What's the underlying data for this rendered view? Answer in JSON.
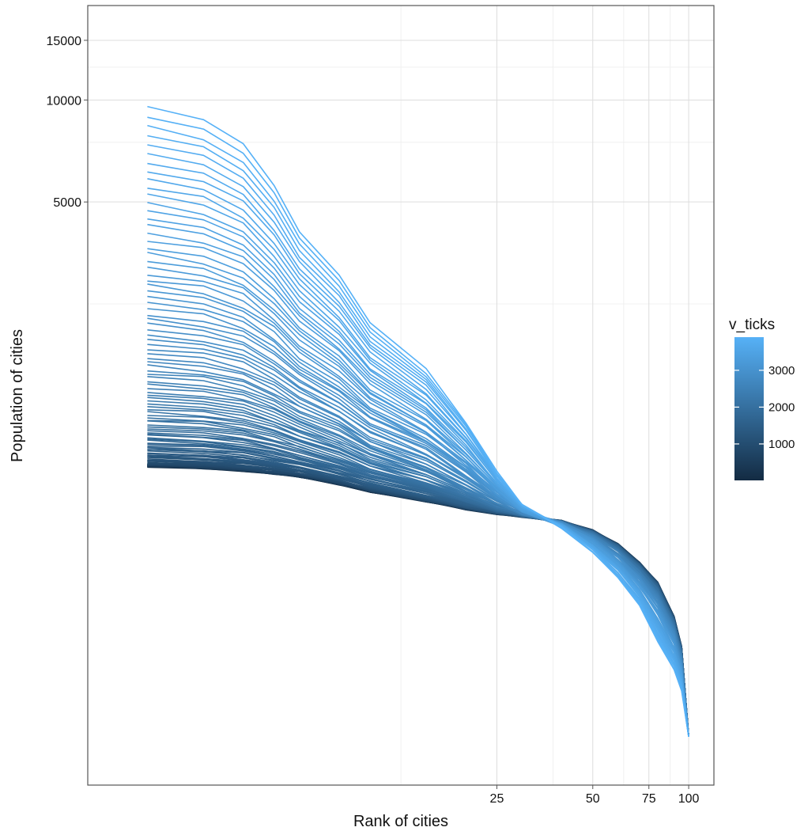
{
  "chart_data": {
    "type": "line",
    "title": "",
    "xlabel": "Rank of cities",
    "ylabel": "Population of cities",
    "x_scale": "log10",
    "y_scale": "log10",
    "xlim": [
      1.3,
      120
    ],
    "ylim": [
      95,
      19000
    ],
    "x_ticks": [
      25,
      50,
      75,
      100
    ],
    "y_ticks": [
      5000,
      10000,
      15000
    ],
    "grid": true,
    "x_minor_grid": [
      12.5,
      37.5,
      62.5,
      87.5
    ],
    "y_minor_grid": [
      2500,
      7500,
      12500
    ],
    "series_count": 120,
    "color_variable": "v_ticks",
    "color_range": [
      10,
      3900
    ],
    "color_low": "#132b43",
    "color_high": "#56b1f7",
    "ranks": [
      2,
      3,
      4,
      5,
      6,
      8,
      10,
      15,
      20,
      25,
      30,
      40,
      50,
      60,
      70,
      80,
      90,
      95,
      100
    ],
    "top_line_populations": [
      9500,
      8700,
      7400,
      5600,
      4100,
      3050,
      2200,
      1600,
      1120,
      800,
      640,
      545,
      462,
      388,
      322,
      252,
      208,
      181,
      132
    ],
    "bottom_line_populations": [
      830,
      820,
      806,
      790,
      775,
      735,
      700,
      655,
      621,
      601,
      590,
      570,
      535,
      487,
      430,
      375,
      297,
      242,
      132
    ]
  },
  "legend": {
    "title": "v_ticks",
    "position": "right",
    "ticks": [
      {
        "value": 1000,
        "label": "1000"
      },
      {
        "value": 2000,
        "label": "2000"
      },
      {
        "value": 3000,
        "label": "3000"
      }
    ]
  },
  "axes": {
    "x_tick_labels": [
      "25",
      "50",
      "75",
      "100"
    ],
    "y_tick_labels": [
      "5000",
      "10000",
      "15000"
    ]
  },
  "colors": {
    "grid": "#dddddd",
    "panel_border": "#555555",
    "tick_color": "#555555"
  }
}
